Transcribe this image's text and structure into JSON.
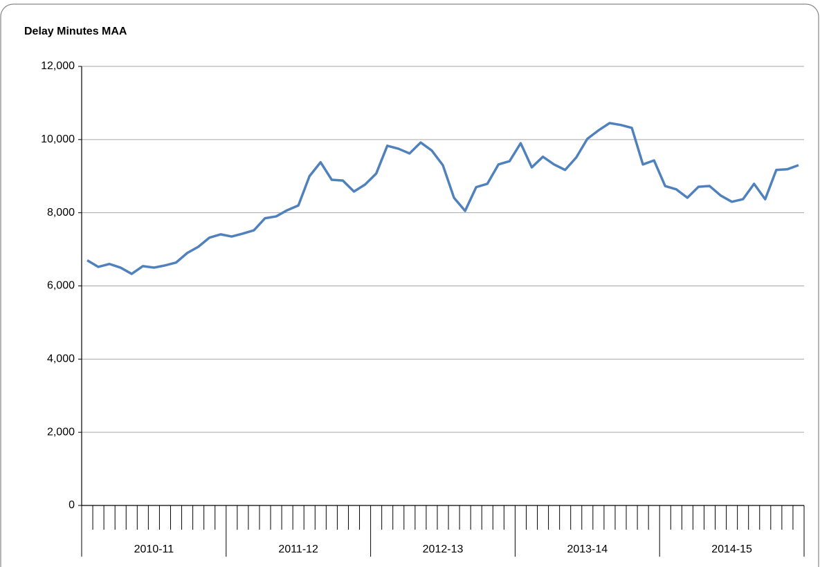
{
  "chart_data": {
    "type": "line",
    "title": "Delay Minutes MAA",
    "categories": [
      null,
      null,
      null,
      null,
      null,
      null,
      null,
      null,
      null,
      null,
      null,
      null,
      null,
      null,
      null,
      null,
      null,
      null,
      null,
      null,
      null,
      null,
      null,
      null,
      null,
      null,
      null,
      null,
      null,
      null,
      null,
      null,
      null,
      null,
      null,
      null,
      null,
      null,
      null,
      null,
      null,
      null,
      null,
      null,
      null,
      null,
      null,
      null,
      null,
      null,
      null,
      null,
      null,
      null,
      null,
      null,
      null,
      null,
      null,
      null,
      null,
      null,
      null,
      null,
      null
    ],
    "category_groups": [
      "2010-11",
      "2011-12",
      "2012-13",
      "2013-14",
      "2014-15"
    ],
    "values": [
      6700,
      6520,
      6600,
      6500,
      6330,
      6540,
      6500,
      6560,
      6640,
      6900,
      7070,
      7320,
      7410,
      7350,
      7430,
      7520,
      7850,
      7900,
      8070,
      8200,
      9000,
      9380,
      8900,
      8880,
      8580,
      8770,
      9070,
      9830,
      9750,
      9620,
      9920,
      9700,
      9300,
      8410,
      8050,
      8700,
      8790,
      9320,
      9410,
      9900,
      9240,
      9530,
      9320,
      9170,
      9510,
      10020,
      10250,
      10450,
      10400,
      10320,
      9320,
      9430,
      8730,
      8640,
      8410,
      8710,
      8730,
      8470,
      8300,
      8370,
      8790,
      8370,
      9170,
      9190,
      9300
    ],
    "color": "#4f81bd",
    "ylim": [
      0,
      12000
    ],
    "yticks": [
      0,
      {
        "value": 2000,
        "label": "2,000"
      },
      {
        "value": 4000,
        "label": "4,000"
      },
      {
        "value": 6000,
        "label": "6,000"
      },
      {
        "value": 8000,
        "label": "8,000"
      },
      {
        "value": 10000,
        "label": "10,000"
      },
      {
        "value": 12000,
        "label": "12,000"
      }
    ],
    "grid": true
  }
}
